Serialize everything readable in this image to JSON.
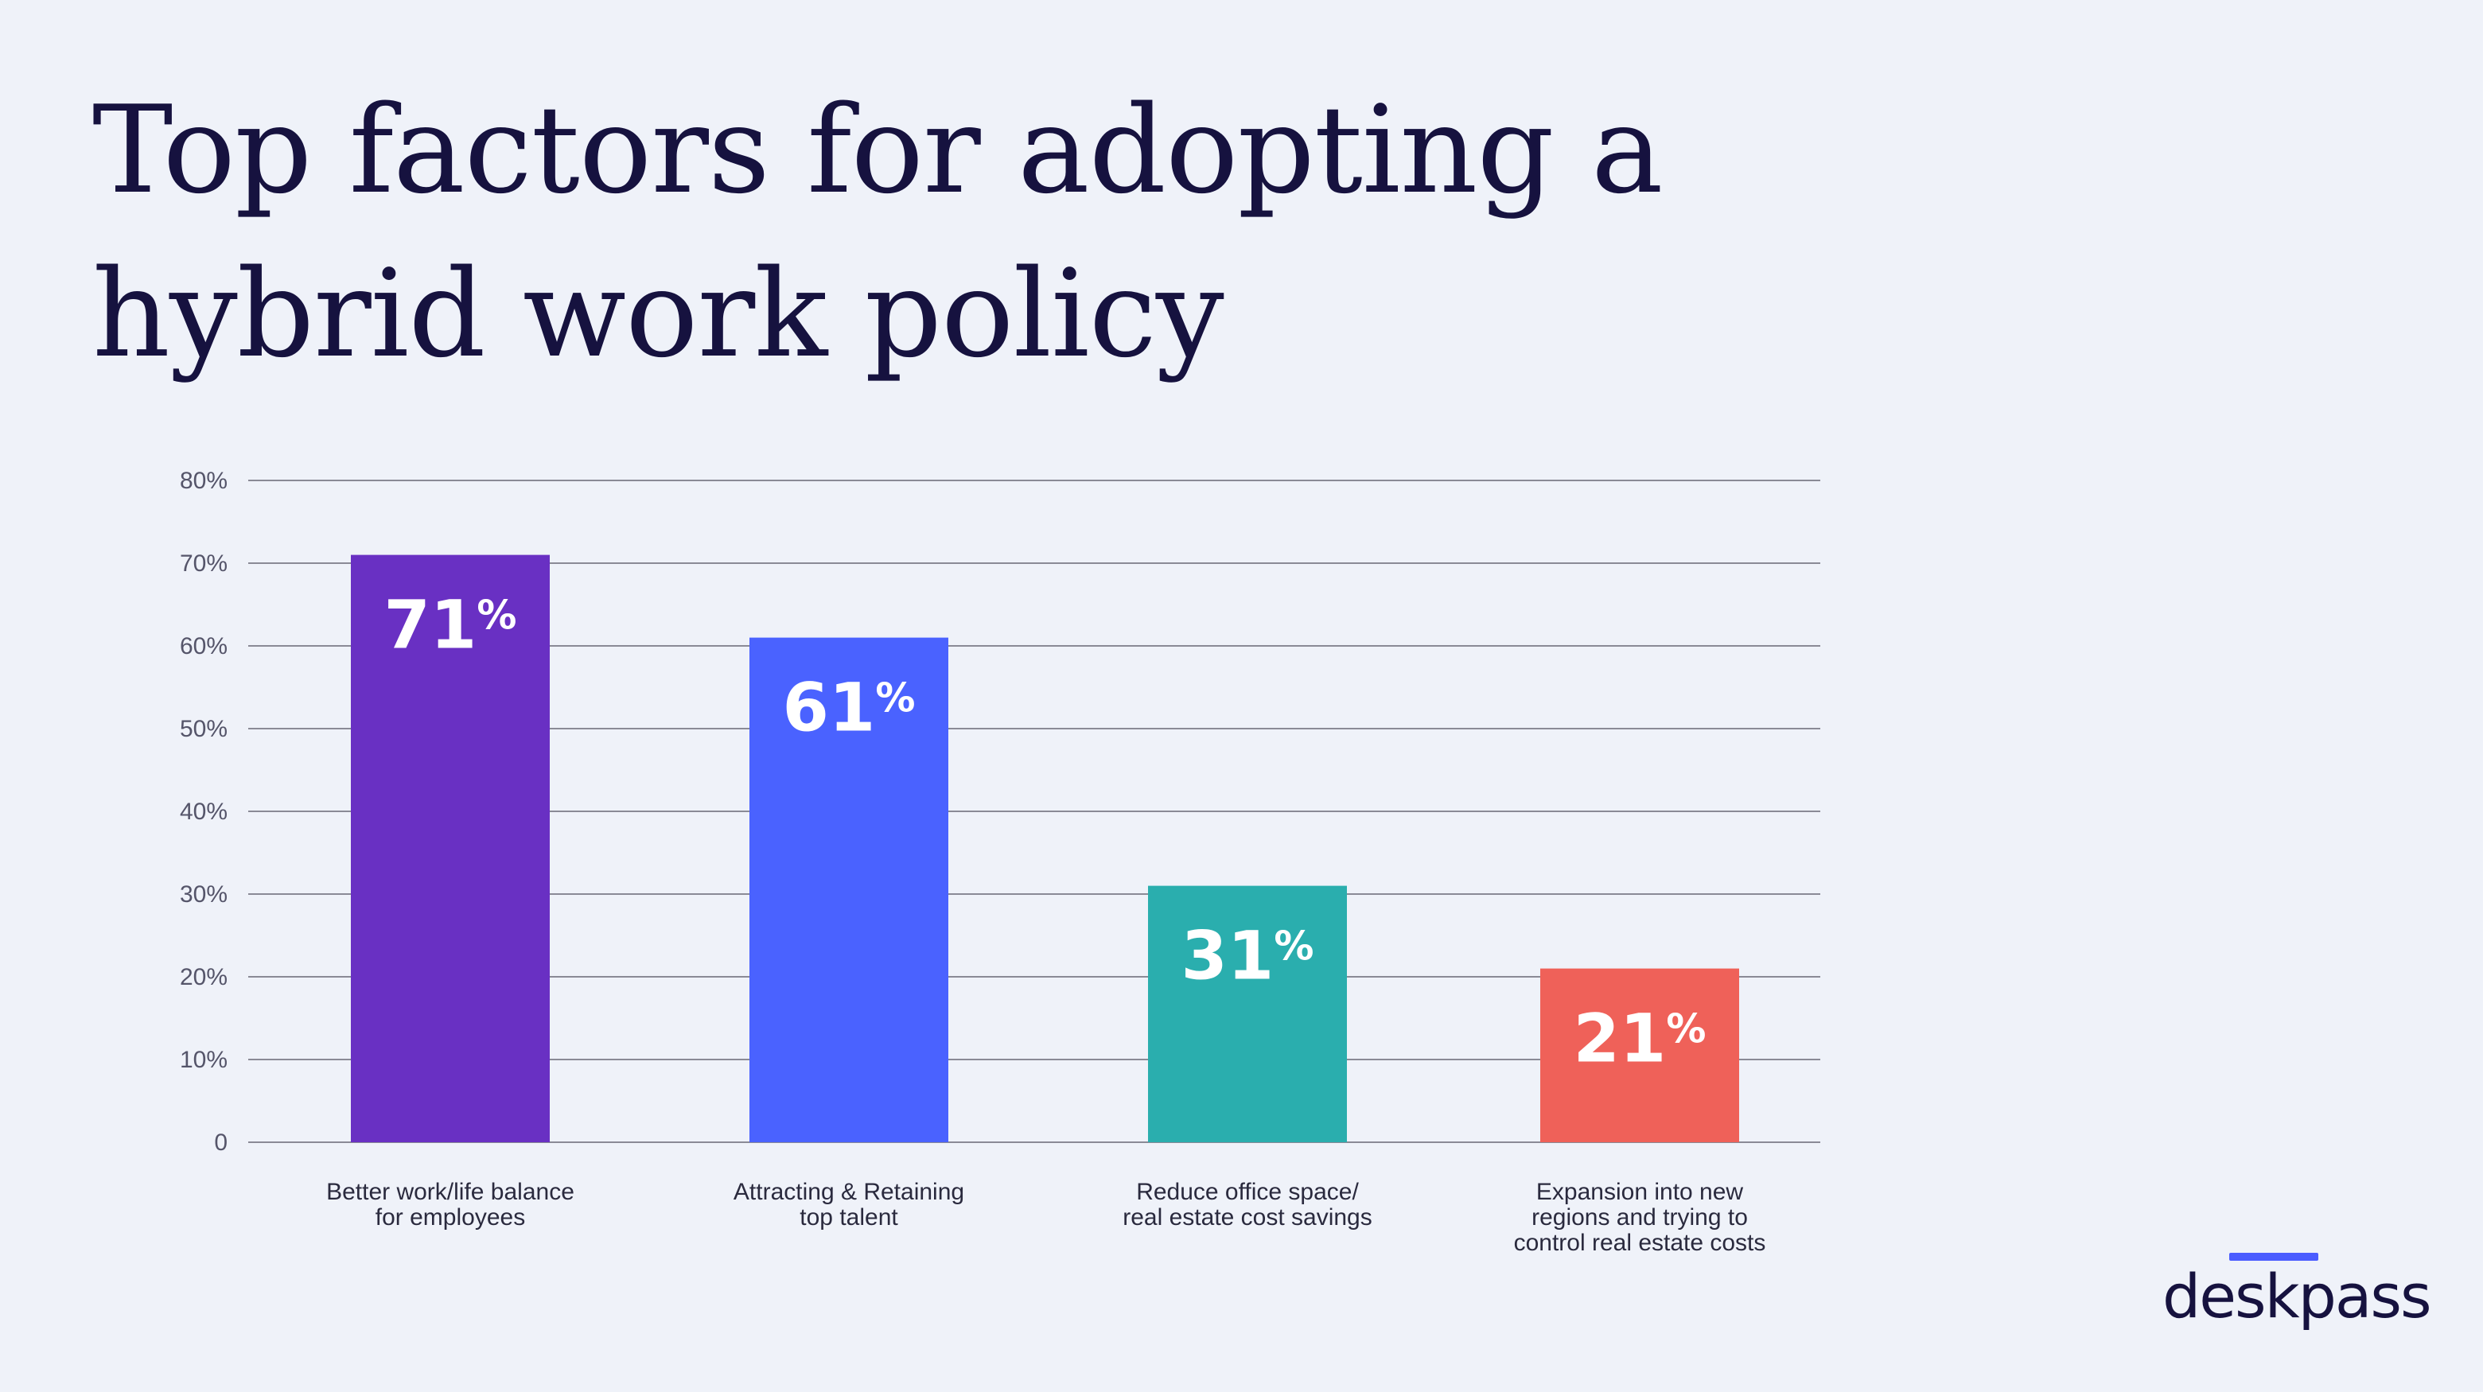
{
  "title_lines": [
    "Top factors for adopting a",
    "hybrid work policy"
  ],
  "brand": "deskpass",
  "colors": {
    "background": "#eff2f9",
    "title": "#16123f",
    "grid": "#8a8a96",
    "bars": [
      "#6930c3",
      "#4a62ff",
      "#2aaeae",
      "#ef6159"
    ],
    "brand_accent": "#4a5cff"
  },
  "chart_data": {
    "type": "bar",
    "title": "Top factors for adopting a hybrid work policy",
    "categories": [
      [
        "Better work/life balance",
        "for employees"
      ],
      [
        "Attracting & Retaining",
        "top talent"
      ],
      [
        "Reduce office space/",
        "real estate cost savings"
      ],
      [
        "Expansion into new",
        "regions and trying to",
        "control real estate costs"
      ]
    ],
    "values": [
      71,
      61,
      31,
      21
    ],
    "value_labels": [
      "71",
      "61",
      "31",
      "21"
    ],
    "value_suffix": "%",
    "ylim": [
      0,
      80
    ],
    "yticks": [
      0,
      10,
      20,
      30,
      40,
      50,
      60,
      70,
      80
    ],
    "ytick_labels": [
      "0",
      "10%",
      "20%",
      "30%",
      "40%",
      "50%",
      "60%",
      "70%",
      "80%"
    ],
    "grid": true,
    "legend": "none"
  }
}
